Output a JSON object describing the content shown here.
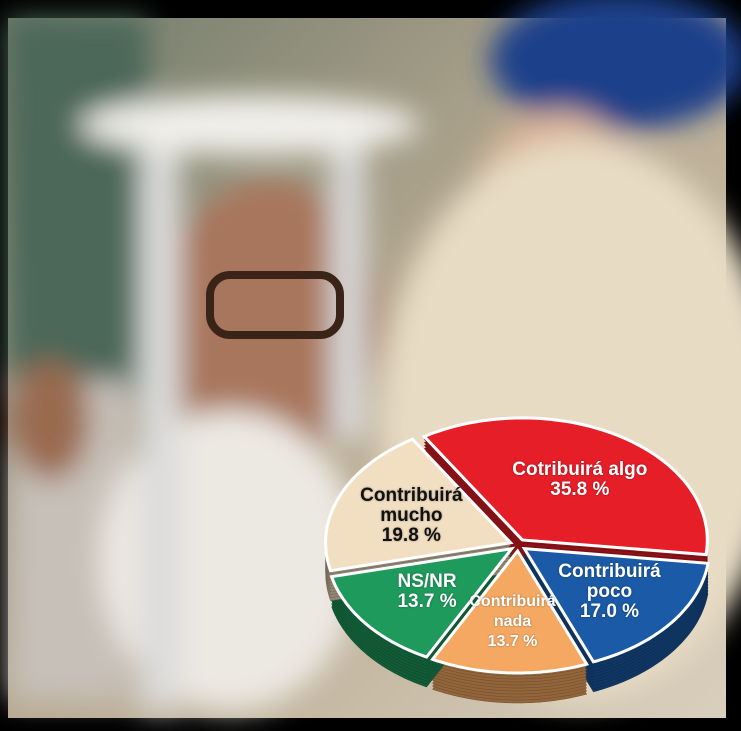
{
  "chart_data": {
    "type": "pie",
    "categories": [
      "Cotribuirá algo",
      "Contribuirá poco",
      "Contribuirá nada",
      "NS/NR",
      "Contribuirá mucho"
    ],
    "values": [
      35.8,
      17.0,
      13.7,
      13.7,
      19.8
    ],
    "value_labels": [
      "35.8 %",
      "17.0 %",
      "13.7 %",
      "13.7 %",
      "19.8 %"
    ],
    "colors": [
      "#e61e28",
      "#1b5aa6",
      "#f4a862",
      "#1e9a5c",
      "#f2dfc2"
    ],
    "label_colors": [
      "#ffffff",
      "#ffffff",
      "#ffffff",
      "#ffffff",
      "#111111"
    ]
  }
}
